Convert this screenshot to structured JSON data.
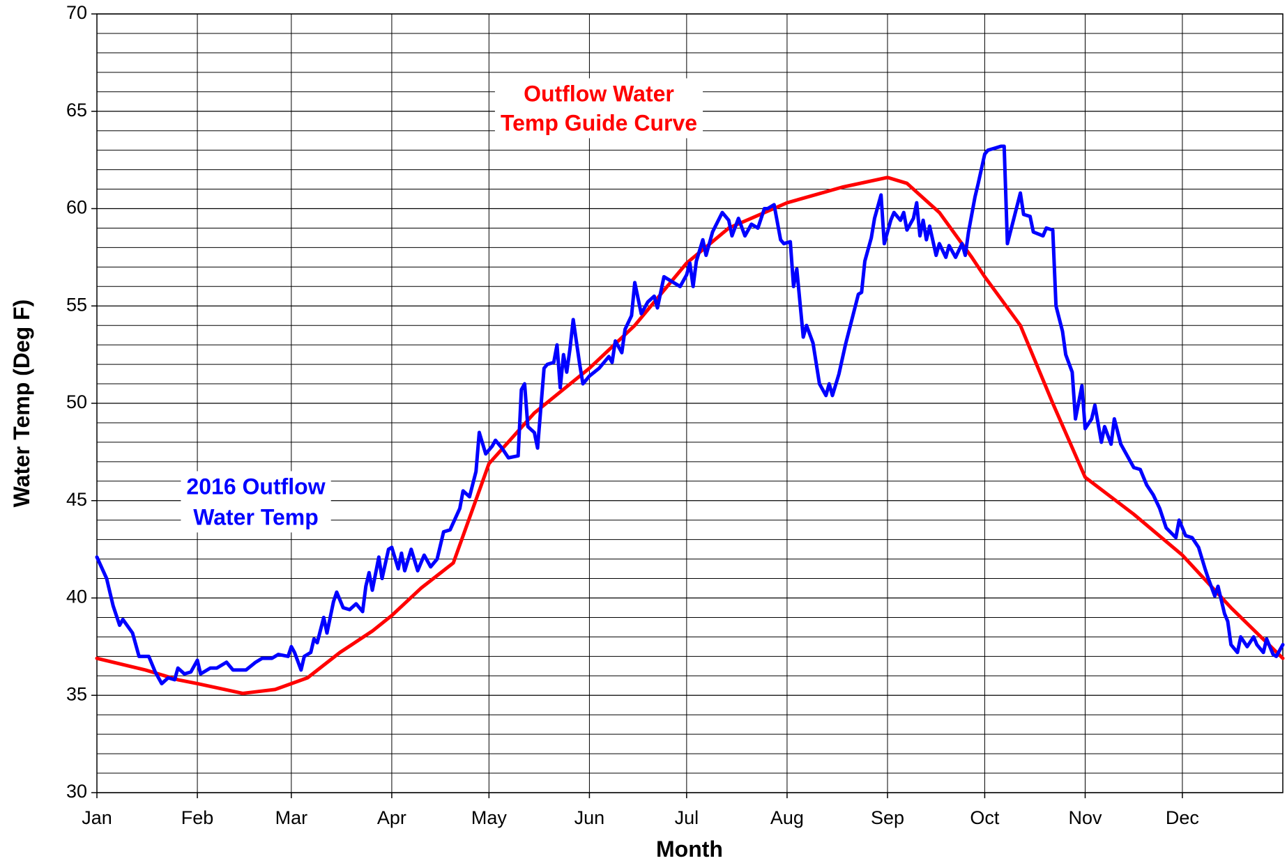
{
  "chart_data": {
    "type": "line",
    "x_label": "Month",
    "y_label": "Water Temp (Deg F)",
    "xlim": [
      0,
      366
    ],
    "xticks": [
      {
        "value": 0,
        "label": "Jan"
      },
      {
        "value": 31,
        "label": "Feb"
      },
      {
        "value": 60,
        "label": "Mar"
      },
      {
        "value": 91,
        "label": "Apr"
      },
      {
        "value": 121,
        "label": "May"
      },
      {
        "value": 152,
        "label": "Jun"
      },
      {
        "value": 182,
        "label": "Jul"
      },
      {
        "value": 213,
        "label": "Aug"
      },
      {
        "value": 244,
        "label": "Sep"
      },
      {
        "value": 274,
        "label": "Oct"
      },
      {
        "value": 305,
        "label": "Nov"
      },
      {
        "value": 335,
        "label": "Dec"
      }
    ],
    "ylim": [
      30,
      70
    ],
    "yticks": [
      30,
      35,
      40,
      45,
      50,
      55,
      60,
      65,
      70
    ],
    "minor_grid": [
      31,
      32,
      33,
      34,
      36,
      37,
      38,
      39,
      41,
      42,
      43,
      44,
      46,
      47,
      48,
      49,
      51,
      52,
      53,
      54,
      56,
      57,
      58,
      59,
      61,
      62,
      63,
      64,
      66,
      67,
      68,
      69
    ],
    "grid": true,
    "annotations": [
      {
        "lines": [
          "Outflow Water",
          "Temp Guide Curve"
        ],
        "color": "#ff0000"
      },
      {
        "lines": [
          "2016 Outflow",
          "Water Temp"
        ],
        "color": "#0000ff"
      }
    ],
    "series": [
      {
        "name": "Outflow Water Temp Guide Curve",
        "color": "#ff0000",
        "x": [
          0,
          15,
          25,
          31,
          45,
          55,
          60,
          65,
          75,
          85,
          91,
          100,
          110,
          121,
          135,
          152,
          166,
          182,
          195,
          213,
          230,
          244,
          250,
          260,
          270,
          274,
          285,
          295,
          305,
          320,
          335,
          350,
          366
        ],
        "values": [
          36.9,
          36.3,
          35.8,
          35.6,
          35.1,
          35.3,
          35.6,
          35.9,
          37.2,
          38.3,
          39.1,
          40.5,
          41.8,
          46.9,
          49.5,
          51.8,
          54.0,
          57.2,
          59.0,
          60.3,
          61.1,
          61.6,
          61.3,
          59.8,
          57.5,
          56.5,
          54.0,
          50.0,
          46.2,
          44.3,
          42.2,
          39.5,
          36.9
        ]
      },
      {
        "name": "2016 Outflow Water Temp",
        "color": "#0000ff",
        "x": [
          0,
          3,
          5,
          7,
          8,
          11,
          13,
          16,
          18,
          20,
          22,
          24,
          25,
          27,
          29,
          31,
          32,
          35,
          37,
          40,
          42,
          46,
          49,
          51,
          54,
          56,
          59,
          60,
          61,
          63,
          64,
          66,
          67,
          68,
          70,
          71,
          73,
          74,
          76,
          78,
          80,
          82,
          83,
          84,
          85,
          87,
          88,
          90,
          91,
          93,
          94,
          95,
          97,
          99,
          101,
          103,
          105,
          107,
          109,
          112,
          113,
          115,
          117,
          118,
          120,
          122,
          123,
          125,
          127,
          130,
          131,
          132,
          133,
          135,
          136,
          138,
          139,
          141,
          142,
          143,
          144,
          145,
          146,
          147,
          149,
          150,
          152,
          155,
          158,
          159,
          160,
          162,
          163,
          165,
          166,
          168,
          170,
          172,
          173,
          175,
          178,
          180,
          182,
          183,
          184,
          185,
          187,
          188,
          190,
          193,
          195,
          196,
          198,
          200,
          202,
          204,
          206,
          207,
          209,
          211,
          212,
          214,
          215,
          216,
          218,
          219,
          221,
          223,
          225,
          226,
          227,
          229,
          231,
          233,
          235,
          236,
          237,
          239,
          240,
          242,
          243,
          245,
          246,
          248,
          249,
          250,
          252,
          253,
          254,
          255,
          256,
          257,
          259,
          260,
          262,
          263,
          265,
          267,
          268,
          269,
          271,
          272,
          274,
          275,
          277,
          279,
          280,
          281,
          283,
          285,
          286,
          288,
          289,
          292,
          293,
          295,
          296,
          298,
          299,
          301,
          302,
          304,
          305,
          307,
          308,
          310,
          311,
          313,
          314,
          316,
          318,
          320,
          322,
          324,
          326,
          328,
          330,
          333,
          334,
          336,
          338,
          340,
          342,
          343,
          345,
          346,
          348,
          349,
          350,
          352,
          353,
          355,
          357,
          358,
          360,
          361,
          363,
          364,
          366
        ],
        "values": [
          42.1,
          41.0,
          39.6,
          38.6,
          38.9,
          38.2,
          37.0,
          37.0,
          36.2,
          35.6,
          35.9,
          35.8,
          36.4,
          36.1,
          36.2,
          36.8,
          36.1,
          36.4,
          36.4,
          36.7,
          36.3,
          36.3,
          36.7,
          36.9,
          36.9,
          37.1,
          37.0,
          37.5,
          37.2,
          36.3,
          37.0,
          37.2,
          37.9,
          37.7,
          39.0,
          38.2,
          39.8,
          40.3,
          39.5,
          39.4,
          39.7,
          39.3,
          40.6,
          41.3,
          40.4,
          42.1,
          41.0,
          42.5,
          42.6,
          41.5,
          42.3,
          41.4,
          42.5,
          41.4,
          42.2,
          41.6,
          42.0,
          43.4,
          43.5,
          44.6,
          45.5,
          45.2,
          46.5,
          48.5,
          47.4,
          47.8,
          48.1,
          47.7,
          47.2,
          47.3,
          50.7,
          51.0,
          48.8,
          48.5,
          47.7,
          51.8,
          52.0,
          52.1,
          53.0,
          50.8,
          52.5,
          51.6,
          52.8,
          54.3,
          52.0,
          51.0,
          51.4,
          51.8,
          52.4,
          52.1,
          53.2,
          52.6,
          53.8,
          54.5,
          56.2,
          54.6,
          55.2,
          55.5,
          54.9,
          56.5,
          56.2,
          56.0,
          56.6,
          57.2,
          56.0,
          57.3,
          58.4,
          57.6,
          58.8,
          59.8,
          59.4,
          58.6,
          59.5,
          58.6,
          59.2,
          59.0,
          60.0,
          60.0,
          60.2,
          58.4,
          58.2,
          58.3,
          56.0,
          56.9,
          53.4,
          54.0,
          53.1,
          51.0,
          50.4,
          51.0,
          50.4,
          51.5,
          53.0,
          54.3,
          55.6,
          55.7,
          57.3,
          58.5,
          59.5,
          60.7,
          58.2,
          59.4,
          59.8,
          59.4,
          59.8,
          58.9,
          59.5,
          60.3,
          58.6,
          59.4,
          58.4,
          59.1,
          57.6,
          58.2,
          57.5,
          58.1,
          57.5,
          58.2,
          57.6,
          58.8,
          60.6,
          61.3,
          62.8,
          63.0,
          63.1,
          63.2,
          63.2,
          58.2,
          59.5,
          60.8,
          59.7,
          59.6,
          58.8,
          58.6,
          59.0,
          58.9,
          55.0,
          53.7,
          52.5,
          51.6,
          49.2,
          50.9,
          48.7,
          49.2,
          49.9,
          48.0,
          48.8,
          47.9,
          49.2,
          47.9,
          47.3,
          46.7,
          46.6,
          45.8,
          45.3,
          44.6,
          43.6,
          43.1,
          44.0,
          43.2,
          43.1,
          42.6,
          41.5,
          41.0,
          40.1,
          40.6,
          39.2,
          38.8,
          37.6,
          37.2,
          38.0,
          37.5,
          38.0,
          37.6,
          37.2,
          37.9,
          37.1,
          37.0,
          37.6
        ]
      }
    ]
  }
}
